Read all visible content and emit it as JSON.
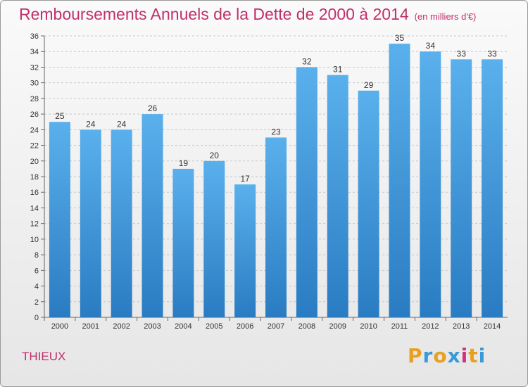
{
  "title": "Remboursements Annuels de la Dette de 2000 à 2014",
  "unit": "(en milliers d'€)",
  "commune": "THIEUX",
  "logo": {
    "letters": [
      "P",
      "r",
      "o",
      "x",
      "i",
      "t",
      "i"
    ],
    "colors": [
      "#e8a020",
      "#3a9ad9",
      "#e8a020",
      "#3a9ad9",
      "#d03080",
      "#e8a020",
      "#3a9ad9"
    ]
  },
  "chart_data": {
    "type": "bar",
    "categories": [
      "2000",
      "2001",
      "2002",
      "2003",
      "2004",
      "2005",
      "2006",
      "2007",
      "2008",
      "2009",
      "2010",
      "2011",
      "2012",
      "2013",
      "2014"
    ],
    "values": [
      25,
      24,
      24,
      26,
      19,
      20,
      17,
      23,
      32,
      31,
      29,
      35,
      34,
      33,
      33
    ],
    "title": "Remboursements Annuels de la Dette de 2000 à 2014",
    "ylim": [
      0,
      36
    ],
    "yticks": [
      0,
      2,
      4,
      6,
      8,
      10,
      12,
      14,
      16,
      18,
      20,
      22,
      24,
      26,
      28,
      30,
      32,
      34,
      36
    ],
    "grid": true,
    "bar_color": "#3f97dc"
  }
}
